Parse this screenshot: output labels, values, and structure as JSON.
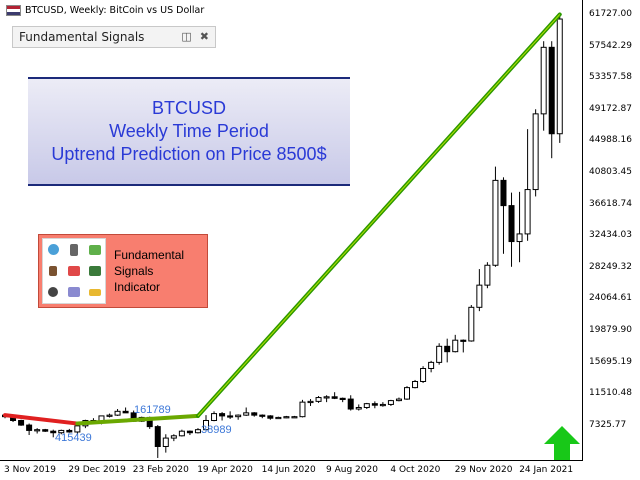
{
  "window": {
    "title": "BTCUSD, Weekly:  BitCoin vs US Dollar",
    "flag_icon": "us-flag-icon"
  },
  "indicator_panel": {
    "label": "Fundamental Signals",
    "restore_icon": "restore-window-icon",
    "close_icon": "close-icon"
  },
  "headline": {
    "line1": "BTCUSD",
    "line2": "Weekly Time Period",
    "line3": "Uptrend Prediction on Price 8500$",
    "text_color": "#2a3ad6"
  },
  "promo": {
    "line1": "Fundamental",
    "line2": "Signals",
    "line3": "Indicator",
    "background": "#f87e6f"
  },
  "price_axis": [
    "61727.00",
    "57542.29",
    "53357.58",
    "49172.87",
    "44988.16",
    "40803.45",
    "36618.74",
    "32434.03",
    "28249.32",
    "24064.61",
    "19879.90",
    "15695.19",
    "11510.48",
    "7325.77"
  ],
  "time_axis": [
    "3 Nov 2019",
    "29 Dec 2019",
    "23 Feb 2020",
    "19 Apr 2020",
    "14 Jun 2020",
    "9 Aug 2020",
    "4 Oct 2020",
    "29 Nov 2020",
    "24 Jan 2021"
  ],
  "marks": {
    "high": "161789",
    "low": "415439",
    "mid": "38989"
  },
  "chart_data": {
    "type": "candlestick",
    "title": "BTCUSD, Weekly",
    "ylim": [
      4000,
      63000
    ],
    "x": [
      "2019-10-28",
      "2019-11-04",
      "2019-11-11",
      "2019-11-18",
      "2019-11-25",
      "2019-12-02",
      "2019-12-09",
      "2019-12-16",
      "2019-12-23",
      "2019-12-30",
      "2020-01-06",
      "2020-01-13",
      "2020-01-20",
      "2020-01-27",
      "2020-02-03",
      "2020-02-10",
      "2020-02-17",
      "2020-02-24",
      "2020-03-02",
      "2020-03-09",
      "2020-03-16",
      "2020-03-23",
      "2020-03-30",
      "2020-04-06",
      "2020-04-13",
      "2020-04-20",
      "2020-04-27",
      "2020-05-04",
      "2020-05-11",
      "2020-05-18",
      "2020-05-25",
      "2020-06-01",
      "2020-06-08",
      "2020-06-15",
      "2020-06-22",
      "2020-06-29",
      "2020-07-06",
      "2020-07-13",
      "2020-07-20",
      "2020-07-27",
      "2020-08-03",
      "2020-08-10",
      "2020-08-17",
      "2020-08-24",
      "2020-08-31",
      "2020-09-07",
      "2020-09-14",
      "2020-09-21",
      "2020-09-28",
      "2020-10-05",
      "2020-10-12",
      "2020-10-19",
      "2020-10-26",
      "2020-11-02",
      "2020-11-09",
      "2020-11-16",
      "2020-11-23",
      "2020-11-30",
      "2020-12-07",
      "2020-12-14",
      "2020-12-21",
      "2020-12-28",
      "2021-01-04",
      "2021-01-11",
      "2021-01-18",
      "2021-01-25",
      "2021-02-01",
      "2021-02-08",
      "2021-02-15",
      "2021-02-22"
    ],
    "ohlc": [
      [
        9400,
        9500,
        9000,
        9200
      ],
      [
        9200,
        9300,
        8500,
        8700
      ],
      [
        8700,
        8800,
        8000,
        8100
      ],
      [
        8100,
        8300,
        6800,
        7400
      ],
      [
        7400,
        7700,
        7000,
        7500
      ],
      [
        7500,
        7600,
        7200,
        7300
      ],
      [
        7300,
        7500,
        6500,
        7100
      ],
      [
        7100,
        7500,
        6900,
        7400
      ],
      [
        7400,
        7600,
        7100,
        7200
      ],
      [
        7200,
        8100,
        7000,
        8000
      ],
      [
        8000,
        8800,
        7700,
        8700
      ],
      [
        8700,
        9000,
        8500,
        8600
      ],
      [
        8600,
        9300,
        8200,
        9300
      ],
      [
        9300,
        9600,
        9100,
        9400
      ],
      [
        9400,
        10200,
        9300,
        9900
      ],
      [
        9900,
        10400,
        9700,
        9700
      ],
      [
        9700,
        10000,
        8500,
        8600
      ],
      [
        8600,
        9200,
        8500,
        9100
      ],
      [
        9100,
        9200,
        7600,
        7900
      ],
      [
        7900,
        8100,
        3800,
        5300
      ],
      [
        5300,
        6900,
        4500,
        6400
      ],
      [
        6400,
        6900,
        6000,
        6700
      ],
      [
        6700,
        7500,
        6600,
        7300
      ],
      [
        7300,
        7400,
        6800,
        7100
      ],
      [
        7100,
        7700,
        7000,
        7500
      ],
      [
        7500,
        9400,
        7400,
        8700
      ],
      [
        8700,
        9900,
        8600,
        9600
      ],
      [
        9600,
        9800,
        8700,
        9300
      ],
      [
        9300,
        9900,
        8900,
        9200
      ],
      [
        9200,
        9500,
        8800,
        9400
      ],
      [
        9400,
        10400,
        9300,
        9700
      ],
      [
        9700,
        9800,
        9200,
        9400
      ],
      [
        9400,
        9500,
        9000,
        9300
      ],
      [
        9300,
        9400,
        8800,
        9000
      ],
      [
        9000,
        9200,
        8900,
        9100
      ],
      [
        9100,
        9300,
        9000,
        9200
      ],
      [
        9200,
        9300,
        9100,
        9200
      ],
      [
        9200,
        11400,
        9100,
        11100
      ],
      [
        11100,
        11500,
        10600,
        11200
      ],
      [
        11200,
        11900,
        11000,
        11700
      ],
      [
        11700,
        12000,
        11100,
        11800
      ],
      [
        11800,
        12400,
        11500,
        11600
      ],
      [
        11600,
        11700,
        11100,
        11500
      ],
      [
        11500,
        12000,
        10000,
        10200
      ],
      [
        10200,
        10800,
        10000,
        10400
      ],
      [
        10400,
        11000,
        10200,
        10900
      ],
      [
        10900,
        11200,
        10300,
        10700
      ],
      [
        10700,
        11100,
        10500,
        10800
      ],
      [
        10800,
        11400,
        10600,
        11300
      ],
      [
        11300,
        11700,
        11200,
        11500
      ],
      [
        11500,
        13200,
        11400,
        13000
      ],
      [
        13000,
        14000,
        12900,
        13800
      ],
      [
        13800,
        15800,
        13600,
        15500
      ],
      [
        15500,
        16500,
        15000,
        16300
      ],
      [
        16300,
        18800,
        16000,
        18400
      ],
      [
        18400,
        19400,
        16300,
        17700
      ],
      [
        17700,
        19900,
        17600,
        19200
      ],
      [
        19200,
        19300,
        17600,
        19100
      ],
      [
        19100,
        23800,
        19000,
        23500
      ],
      [
        23500,
        28500,
        23000,
        26400
      ],
      [
        26400,
        29400,
        26000,
        29000
      ],
      [
        29000,
        41900,
        28800,
        40100
      ],
      [
        40100,
        40500,
        30500,
        36800
      ],
      [
        36800,
        38500,
        28800,
        32100
      ],
      [
        32100,
        38600,
        29400,
        33100
      ],
      [
        33100,
        46800,
        32200,
        38900
      ],
      [
        38900,
        49400,
        38000,
        48800
      ],
      [
        48800,
        58300,
        46600,
        57500
      ],
      [
        57500,
        58300,
        43000,
        46200
      ],
      [
        46200,
        61700,
        45000,
        61200
      ]
    ],
    "series": [
      {
        "name": "Fundamental Signals trend",
        "values_x": [
          "2019-10-28",
          "2019-12-30",
          "2020-04-13",
          "2021-02-22"
        ],
        "values_y": [
          9400,
          8300,
          9300,
          61800
        ]
      }
    ],
    "grid": false
  }
}
